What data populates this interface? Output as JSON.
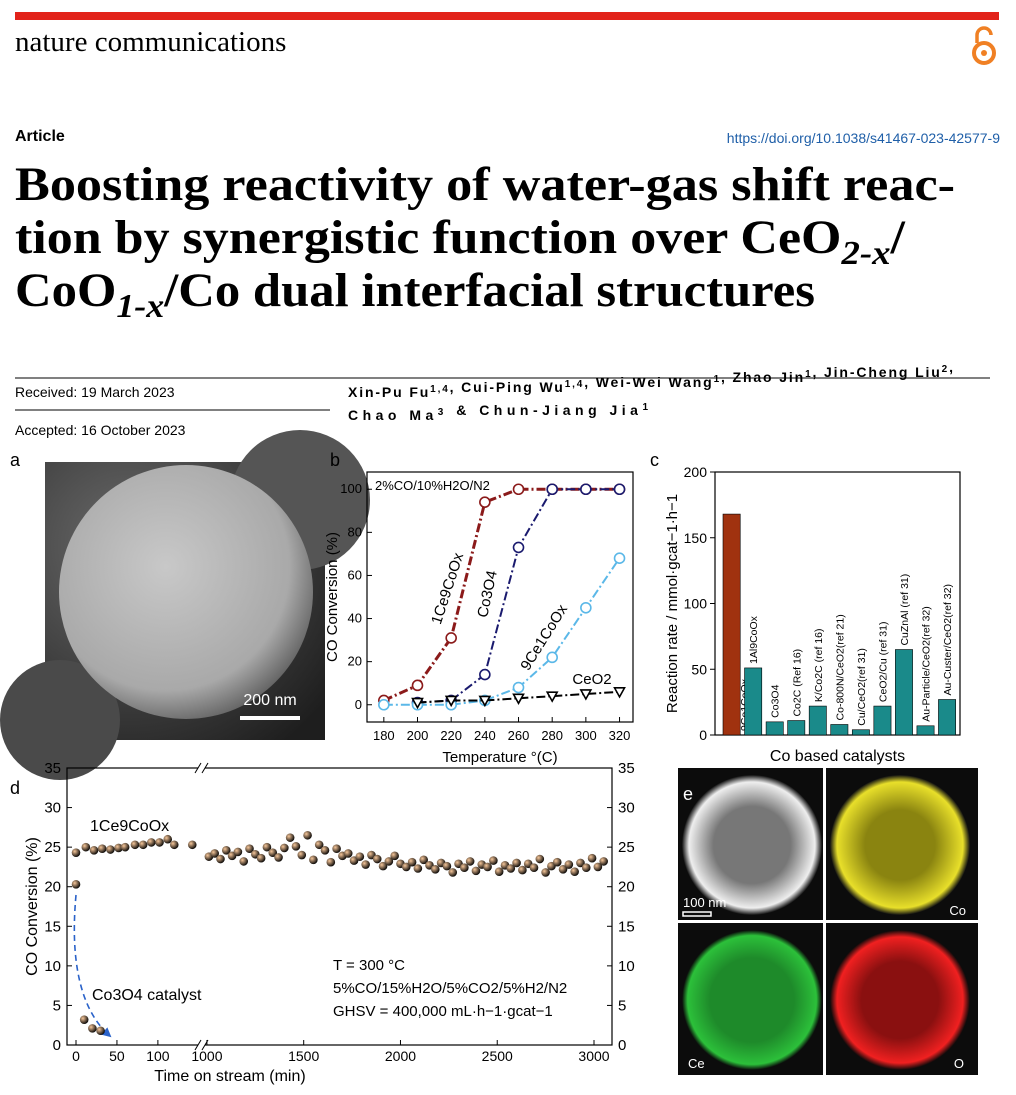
{
  "header": {
    "journal": "nature communications",
    "article_type": "Article",
    "doi": "https://doi.org/10.1038/s41467-023-42577-9",
    "title": [
      [
        "Boosting reactivity of water-gas shift reac-"
      ],
      [
        "tion by synergistic function over CeO",
        "2-x",
        "/"
      ],
      [
        "CoO",
        "1-x",
        "/Co dual interfacial structures"
      ]
    ],
    "received": "Received: 19 March 2023",
    "accepted": "Accepted: 16 October 2023",
    "authors": [
      [
        {
          "text": "Xin-Pu Fu",
          "sup": "1,4"
        },
        {
          "text": ", Cui-Ping Wu",
          "sup": "1,4"
        },
        {
          "text": ", Wei-Wei Wang",
          "sup": "1"
        },
        {
          "text": ", Zhao Jin",
          "sup": "1"
        },
        {
          "text": ", Jin-Cheng Liu",
          "sup": "2"
        },
        {
          "text": ","
        }
      ],
      [
        {
          "text": "Chao Ma",
          "sup": "3"
        },
        {
          "text": " & Chun-Jiang Jia",
          "sup": "1"
        }
      ]
    ]
  },
  "panel_labels": [
    "a",
    "b",
    "c",
    "d",
    "e"
  ],
  "panel_a": {
    "scale_bar": "200 nm"
  },
  "panel_e": {
    "scale_bar": "100 nm",
    "maps": [
      "Co",
      "Ce",
      "O"
    ]
  },
  "chart_data": [
    {
      "type": "line",
      "annotation": "2%CO/10%H2O/N2",
      "xlabel": "Temperature °(C)",
      "ylabel": "CO Conversion (%)",
      "x": [
        180,
        200,
        220,
        240,
        260,
        280,
        300,
        320
      ],
      "xlim": [
        170,
        328
      ],
      "xticks": [
        180,
        200,
        220,
        240,
        260,
        280,
        300,
        320
      ],
      "ylim": [
        -8,
        108
      ],
      "yticks": [
        0,
        20,
        40,
        60,
        80,
        100
      ],
      "series": [
        {
          "name": "1Ce9CoOx",
          "color": "#8b1a1a",
          "marker": "circle",
          "values": [
            2,
            9,
            31,
            94,
            100,
            100,
            100,
            100
          ]
        },
        {
          "name": "Co3O4",
          "color": "#1a1a6e",
          "marker": "circle",
          "values": [
            null,
            1,
            2,
            14,
            73,
            100,
            100,
            100
          ]
        },
        {
          "name": "9Ce1CoOx",
          "color": "#5bb8e8",
          "marker": "circle",
          "values": [
            0,
            0,
            0,
            2,
            8,
            22,
            45,
            68
          ]
        },
        {
          "name": "CeO2",
          "color": "#000000",
          "marker": "triangle",
          "values": [
            null,
            1,
            2,
            2,
            3,
            4,
            5,
            6
          ]
        }
      ]
    },
    {
      "type": "bar",
      "ylabel": "Reaction rate / mmol·gcat−1·h−1",
      "xlabel": "Co based catalysts",
      "categories": [
        "9Ce1CoOx",
        "1Al9CoOx",
        "Co3O4",
        "Co2C (Ref 16)",
        "K/Co2C (ref 16)",
        "Co-800N/CeO2(ref 21)",
        "Cu/CeO2(ref 31)",
        "CeO2/Cu (ref 31)",
        "CuZnAl (ref 31)",
        "Au-Particle/CeO2(ref 32)",
        "Au-Custer/CeO2(ref 32)"
      ],
      "values": [
        168,
        51,
        10,
        11,
        22,
        8,
        4,
        22,
        65,
        7,
        27
      ],
      "colors": [
        "#a0320f",
        "#1a8a8a",
        "#1a8a8a",
        "#1a8a8a",
        "#1a8a8a",
        "#1a8a8a",
        "#1a8a8a",
        "#1a8a8a",
        "#1a8a8a",
        "#1a8a8a",
        "#1a8a8a"
      ],
      "ylim": [
        0,
        200
      ],
      "yticks": [
        0,
        50,
        100,
        150,
        200
      ]
    },
    {
      "type": "scatter",
      "xlabel": "Time on stream (min)",
      "ylabel": "CO Conversion (%)",
      "annotations": [
        "T = 300 °C",
        "5%CO/15%H2O/5%CO2/5%H2/N2",
        "GHSV = 400,000 mL·h−1·gcat−1"
      ],
      "x_segments": [
        {
          "xlim": [
            -11,
            149
          ],
          "xticks": [
            0,
            50,
            100
          ]
        },
        {
          "xlim": [
            990,
            3093
          ],
          "xticks": [
            1000,
            1500,
            2000,
            2500,
            3000
          ]
        }
      ],
      "ylim": [
        0,
        35
      ],
      "yticks": [
        0,
        5,
        10,
        15,
        20,
        25,
        30,
        35
      ],
      "y2lim": [
        0,
        35
      ],
      "y2ticks": [
        0,
        5,
        10,
        15,
        20,
        25,
        30,
        35
      ],
      "series": [
        {
          "name": "1Ce9CoOx",
          "color": "#b4400f",
          "x": [
            0,
            12,
            22,
            32,
            42,
            52,
            60,
            72,
            82,
            92,
            102,
            112,
            120,
            142,
            1010,
            1040,
            1070,
            1100,
            1130,
            1160,
            1190,
            1220,
            1250,
            1280,
            1310,
            1340,
            1370,
            1400,
            1430,
            1460,
            1490,
            1520,
            1550,
            1580,
            1610,
            1640,
            1670,
            1700,
            1730,
            1760,
            1790,
            1820,
            1850,
            1880,
            1910,
            1940,
            1970,
            2000,
            2030,
            2060,
            2090,
            2120,
            2150,
            2180,
            2210,
            2240,
            2270,
            2300,
            2330,
            2360,
            2390,
            2420,
            2450,
            2480,
            2510,
            2540,
            2570,
            2600,
            2630,
            2660,
            2690,
            2720,
            2750,
            2780,
            2810,
            2840,
            2870,
            2900,
            2930,
            2960,
            2990,
            3020,
            3050
          ],
          "values": [
            24.3,
            25.0,
            24.6,
            24.8,
            24.7,
            24.9,
            25.0,
            25.3,
            25.3,
            25.6,
            25.6,
            26.0,
            25.3,
            25.3,
            23.8,
            24.2,
            23.5,
            24.6,
            23.9,
            24.4,
            23.2,
            24.8,
            24.1,
            23.6,
            25.0,
            24.3,
            23.7,
            24.9,
            26.2,
            25.1,
            24.0,
            26.5,
            23.4,
            25.3,
            24.6,
            23.1,
            24.8,
            23.9,
            24.2,
            23.3,
            23.8,
            22.8,
            24.0,
            23.5,
            22.6,
            23.2,
            23.9,
            22.9,
            22.5,
            23.1,
            22.3,
            23.4,
            22.7,
            22.2,
            23.0,
            22.6,
            21.8,
            22.9,
            22.4,
            23.2,
            22.0,
            22.8,
            22.5,
            23.3,
            21.9,
            22.7,
            22.3,
            23.0,
            22.1,
            22.9,
            22.4,
            23.5,
            21.8,
            22.6,
            23.1,
            22.2,
            22.8,
            21.9,
            23.0,
            22.4,
            23.6,
            22.5,
            23.2
          ]
        },
        {
          "name": "Co3O4 catalyst",
          "color": "#eb9428",
          "x": [
            0,
            10,
            20,
            30
          ],
          "values": [
            20.3,
            3.2,
            2.1,
            1.8
          ]
        }
      ]
    }
  ]
}
